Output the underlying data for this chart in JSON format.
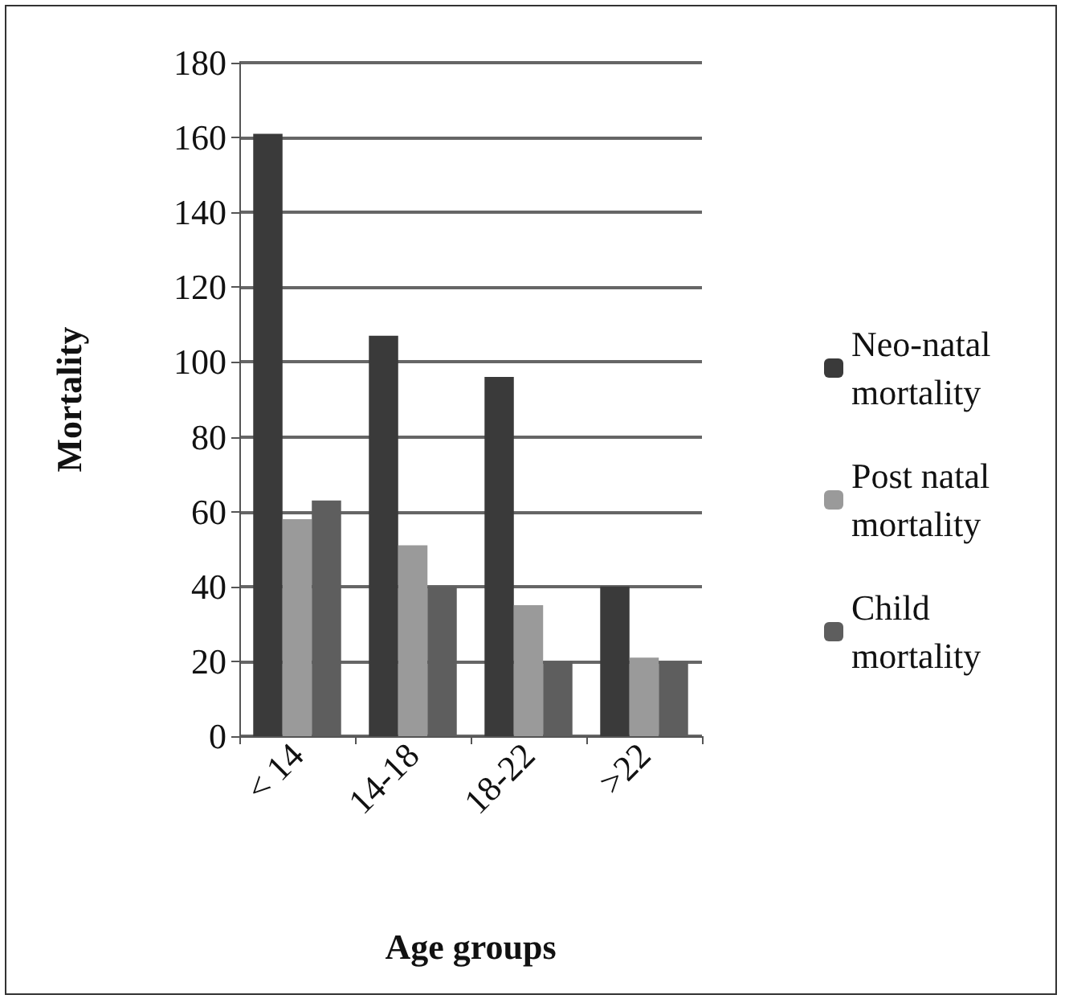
{
  "chart_data": {
    "type": "bar",
    "xlabel": "Age groups",
    "ylabel": "Mortality",
    "categories": [
      "< 14",
      "14-18",
      "18-22",
      ">22"
    ],
    "series": [
      {
        "name": "Neo-natal mortality",
        "color": "#3a3a3a",
        "values": [
          161,
          107,
          96,
          40
        ]
      },
      {
        "name": "Post natal mortality",
        "color": "#9a9a9a",
        "values": [
          58,
          51,
          35,
          21
        ]
      },
      {
        "name": "Child mortality",
        "color": "#5e5e5e",
        "values": [
          63,
          40,
          20,
          20
        ]
      }
    ],
    "ylim": [
      0,
      180
    ],
    "yticks": [
      0,
      20,
      40,
      60,
      80,
      100,
      120,
      140,
      160,
      180
    ],
    "grid": "y",
    "legend": "right"
  }
}
